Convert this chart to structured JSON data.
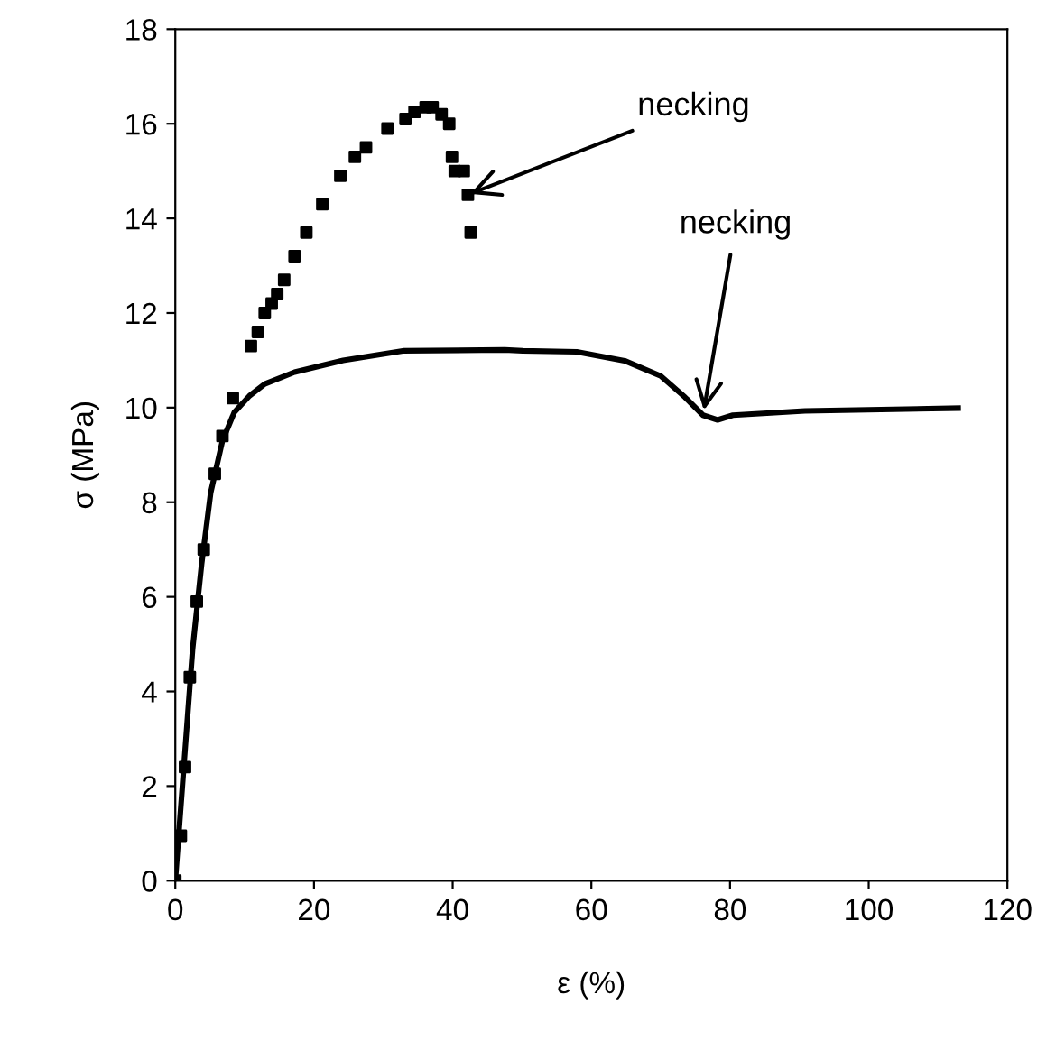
{
  "chart_data": {
    "type": "line",
    "xlabel": "ε (%)",
    "ylabel": "σ (MPa)",
    "xlim": [
      0,
      120
    ],
    "xticks": [
      0,
      20,
      40,
      60,
      80,
      100,
      120
    ],
    "ylim": [
      0,
      18
    ],
    "yticks": [
      0,
      2,
      4,
      6,
      8,
      10,
      12,
      14,
      16,
      18
    ],
    "grid": false,
    "legend": false,
    "series": [
      {
        "type": "scatter",
        "marker": "square",
        "color": "#000000",
        "x": [
          0,
          0.8,
          1.4,
          2.1,
          3.1,
          4.1,
          5.7,
          6.8,
          8.3,
          10.9,
          11.9,
          12.9,
          13.9,
          14.7,
          15.7,
          17.2,
          18.9,
          21.2,
          23.8,
          25.9,
          27.5,
          30.6,
          33.2,
          34.5,
          36.1,
          37.1,
          38.4,
          39.5,
          39.9,
          40.3,
          41.6,
          42.2,
          42.6
        ],
        "values": [
          0,
          0.95,
          2.4,
          4.3,
          5.9,
          7.0,
          8.6,
          9.4,
          10.2,
          11.3,
          11.6,
          12.0,
          12.2,
          12.4,
          12.7,
          13.2,
          13.7,
          14.3,
          14.9,
          15.3,
          15.5,
          15.9,
          16.1,
          16.25,
          16.35,
          16.35,
          16.2,
          16.0,
          15.3,
          15.0,
          15.0,
          14.5,
          13.7
        ]
      },
      {
        "line_style": "solid",
        "color": "#000000",
        "x": [
          0,
          1.2,
          2.5,
          3.8,
          5.1,
          6.8,
          8.5,
          10.7,
          12.9,
          17.2,
          24.2,
          32.8,
          47.5,
          50.1,
          57.9,
          64.8,
          70.0,
          73.5,
          76.1,
          78.2,
          80.4,
          90.8,
          112.9
        ],
        "values": [
          0,
          2.35,
          4.9,
          6.7,
          8.2,
          9.3,
          9.9,
          10.25,
          10.5,
          10.75,
          11.0,
          11.2,
          11.22,
          11.2,
          11.18,
          10.99,
          10.67,
          10.22,
          9.84,
          9.74,
          9.84,
          9.93,
          9.99
        ]
      }
    ],
    "annotations": [
      {
        "text": "necking",
        "x": 42.2,
        "y": 14.5
      },
      {
        "text": "necking",
        "x": 76.1,
        "y": 9.84
      }
    ]
  }
}
